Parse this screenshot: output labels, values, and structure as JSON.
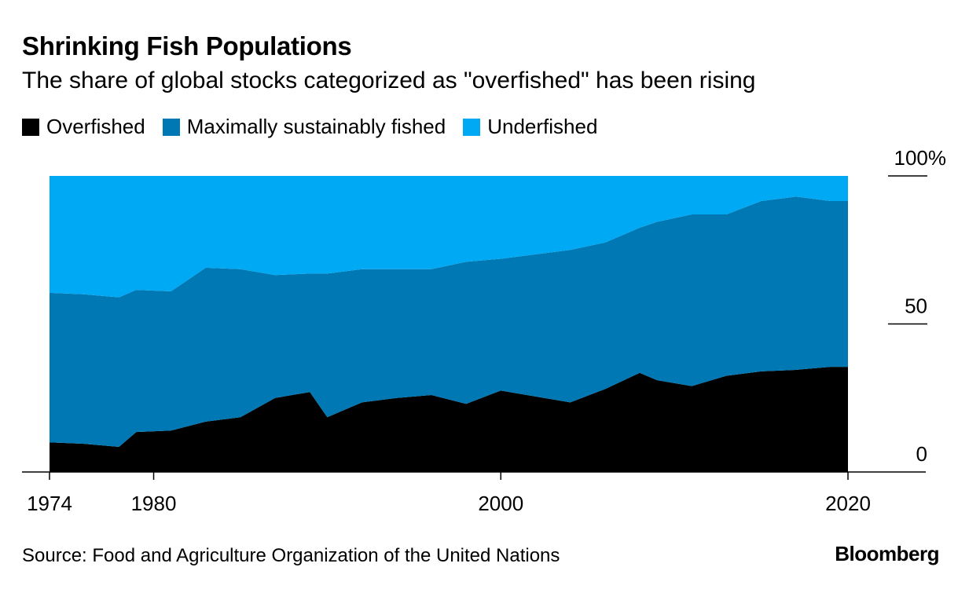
{
  "chart_data": {
    "type": "area",
    "stacked": true,
    "title": "Shrinking Fish Populations",
    "subtitle": "The share of global stocks categorized as \"overfished\" has been rising",
    "source": "Source: Food and Agriculture Organization of the United Nations",
    "brand": "Bloomberg",
    "xlim": [
      1974,
      2020
    ],
    "ylim": [
      0,
      100
    ],
    "x_ticks": [
      1974,
      1980,
      2000,
      2020
    ],
    "x_tick_labels": [
      "1974",
      "1980",
      "2000",
      "2020"
    ],
    "y_ticks": [
      0,
      50,
      100
    ],
    "y_tick_labels": [
      "0",
      "50",
      "100%"
    ],
    "x": [
      1974,
      1976,
      1978,
      1979,
      1981,
      1983,
      1985,
      1987,
      1989,
      1990,
      1992,
      1994,
      1996,
      1998,
      2000,
      2002,
      2004,
      2006,
      2008,
      2009,
      2011,
      2013,
      2015,
      2017,
      2019,
      2020
    ],
    "series": [
      {
        "name": "Overfished",
        "color": "#000000",
        "values": [
          10,
          9.5,
          8.5,
          13.5,
          14,
          17,
          18.5,
          25,
          27,
          18.5,
          23.5,
          25,
          26,
          23,
          27.5,
          25.5,
          23.5,
          28,
          33.5,
          31,
          29,
          32.5,
          34,
          34.5,
          35.5,
          35.5
        ]
      },
      {
        "name": "Maximally sustainably fished",
        "color": "#0078b4",
        "values": [
          50.5,
          50.5,
          50.5,
          48,
          47,
          52,
          50,
          41.5,
          40,
          48.5,
          45,
          43.5,
          42.5,
          48,
          44.5,
          48,
          51.5,
          49.5,
          49,
          53.5,
          58,
          54.5,
          57.5,
          58.5,
          56,
          56
        ]
      },
      {
        "name": "Underfished",
        "color": "#00a9f4",
        "values": [
          39.5,
          40,
          41,
          38.5,
          39,
          31,
          31.5,
          33.5,
          33,
          33,
          31.5,
          31.5,
          31.5,
          29,
          28,
          26.5,
          25,
          22.5,
          17.5,
          15.5,
          13,
          13,
          8.5,
          7,
          8.5,
          8.5
        ]
      }
    ]
  }
}
